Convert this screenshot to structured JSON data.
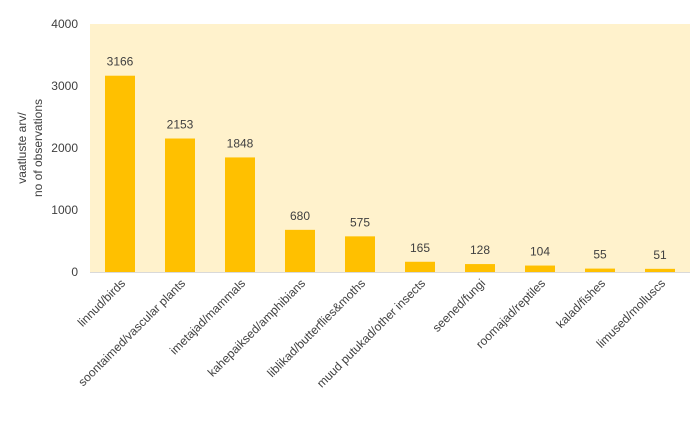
{
  "chart_data": {
    "type": "bar",
    "categories": [
      "linnud/birds",
      "soontaimed/vascular plants",
      "imetajad/mammals",
      "kahepaiksed/amphibians",
      "liblikad/butterflies&moths",
      "muud putukad/other insects",
      "seened/fungi",
      "roomajad/reptiles",
      "kalad/fishes",
      "limused/molluscs"
    ],
    "values": [
      3166,
      2153,
      1848,
      680,
      575,
      165,
      128,
      104,
      55,
      51
    ],
    "data_labels": [
      "3166",
      "2153",
      "1848",
      "680",
      "575",
      "165",
      "128",
      "104",
      "55",
      "51"
    ],
    "ylabel_lines": [
      "vaatluste arv/",
      "no of observations"
    ],
    "ylim": [
      0,
      4000
    ],
    "yticks": [
      0,
      1000,
      2000,
      3000,
      4000
    ],
    "ytick_labels": [
      "0",
      "1000",
      "2000",
      "3000",
      "4000"
    ],
    "grid": false,
    "legend": "none",
    "colors": {
      "bar": "#FFC000",
      "plot_background": "#FFF2CC",
      "axis_line": "#D9D9D9",
      "text": "#404040"
    }
  }
}
